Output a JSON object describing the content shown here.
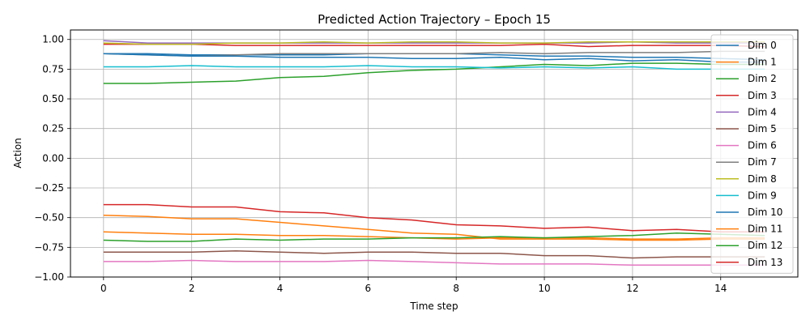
{
  "chart_data": {
    "type": "line",
    "title": "Predicted Action Trajectory – Epoch 15",
    "xlabel": "Time step",
    "ylabel": "Action",
    "xlim": [
      -0.75,
      15.75
    ],
    "ylim": [
      -1.0,
      1.08
    ],
    "xticks": [
      0,
      2,
      4,
      6,
      8,
      10,
      12,
      14
    ],
    "yticks": [
      -1.0,
      -0.75,
      -0.5,
      -0.25,
      0.0,
      0.25,
      0.5,
      0.75,
      1.0
    ],
    "ytick_labels": [
      "−1.00",
      "−0.75",
      "−0.50",
      "−0.25",
      "0.00",
      "0.25",
      "0.50",
      "0.75",
      "1.00"
    ],
    "grid": true,
    "legend_position": "right",
    "x": [
      0,
      1,
      2,
      3,
      4,
      5,
      6,
      7,
      8,
      9,
      10,
      11,
      12,
      13,
      14,
      15
    ],
    "series": [
      {
        "name": "Dim 0",
        "color": "#1f77b4",
        "values": [
          0.88,
          0.88,
          0.87,
          0.87,
          0.87,
          0.87,
          0.88,
          0.88,
          0.88,
          0.87,
          0.86,
          0.86,
          0.85,
          0.85,
          0.84,
          0.83
        ]
      },
      {
        "name": "Dim 1",
        "color": "#ff7f0e",
        "values": [
          -0.48,
          -0.49,
          -0.51,
          -0.51,
          -0.54,
          -0.57,
          -0.6,
          -0.63,
          -0.64,
          -0.68,
          -0.68,
          -0.68,
          -0.69,
          -0.69,
          -0.68,
          -0.68
        ]
      },
      {
        "name": "Dim 2",
        "color": "#2ca02c",
        "values": [
          0.63,
          0.63,
          0.64,
          0.65,
          0.68,
          0.69,
          0.72,
          0.74,
          0.75,
          0.77,
          0.79,
          0.78,
          0.8,
          0.8,
          0.79,
          0.79
        ]
      },
      {
        "name": "Dim 3",
        "color": "#d62728",
        "values": [
          0.96,
          0.96,
          0.96,
          0.95,
          0.95,
          0.95,
          0.95,
          0.95,
          0.95,
          0.95,
          0.96,
          0.94,
          0.95,
          0.95,
          0.95,
          0.94
        ]
      },
      {
        "name": "Dim 4",
        "color": "#9467bd",
        "values": [
          0.99,
          0.97,
          0.97,
          0.97,
          0.97,
          0.97,
          0.97,
          0.97,
          0.97,
          0.97,
          0.97,
          0.97,
          0.98,
          0.97,
          0.97,
          0.97
        ]
      },
      {
        "name": "Dim 5",
        "color": "#8c564b",
        "values": [
          -0.79,
          -0.79,
          -0.79,
          -0.78,
          -0.79,
          -0.8,
          -0.79,
          -0.79,
          -0.8,
          -0.8,
          -0.82,
          -0.82,
          -0.84,
          -0.83,
          -0.83,
          -0.83
        ]
      },
      {
        "name": "Dim 6",
        "color": "#e377c2",
        "values": [
          -0.87,
          -0.87,
          -0.86,
          -0.87,
          -0.87,
          -0.87,
          -0.86,
          -0.87,
          -0.88,
          -0.89,
          -0.89,
          -0.89,
          -0.9,
          -0.9,
          -0.9,
          -0.9
        ]
      },
      {
        "name": "Dim 7",
        "color": "#7f7f7f",
        "values": [
          0.88,
          0.87,
          0.86,
          0.87,
          0.88,
          0.88,
          0.88,
          0.88,
          0.88,
          0.89,
          0.88,
          0.89,
          0.89,
          0.89,
          0.9,
          0.9
        ]
      },
      {
        "name": "Dim 8",
        "color": "#bcbd22",
        "values": [
          0.97,
          0.96,
          0.96,
          0.97,
          0.97,
          0.98,
          0.97,
          0.98,
          0.98,
          0.97,
          0.97,
          0.98,
          0.98,
          0.98,
          0.98,
          0.98
        ]
      },
      {
        "name": "Dim 9",
        "color": "#17becf",
        "values": [
          0.77,
          0.77,
          0.78,
          0.77,
          0.77,
          0.77,
          0.78,
          0.77,
          0.77,
          0.76,
          0.77,
          0.76,
          0.77,
          0.75,
          0.75,
          0.75
        ]
      },
      {
        "name": "Dim 10",
        "color": "#1f77b4",
        "values": [
          0.88,
          0.87,
          0.86,
          0.86,
          0.85,
          0.85,
          0.85,
          0.84,
          0.84,
          0.85,
          0.83,
          0.84,
          0.82,
          0.83,
          0.81,
          0.81
        ]
      },
      {
        "name": "Dim 11",
        "color": "#ff7f0e",
        "values": [
          -0.62,
          -0.63,
          -0.64,
          -0.64,
          -0.65,
          -0.65,
          -0.66,
          -0.67,
          -0.68,
          -0.67,
          -0.67,
          -0.67,
          -0.68,
          -0.68,
          -0.67,
          -0.67
        ]
      },
      {
        "name": "Dim 12",
        "color": "#2ca02c",
        "values": [
          -0.69,
          -0.7,
          -0.7,
          -0.68,
          -0.69,
          -0.68,
          -0.68,
          -0.67,
          -0.67,
          -0.66,
          -0.67,
          -0.66,
          -0.65,
          -0.63,
          -0.64,
          -0.65
        ]
      },
      {
        "name": "Dim 13",
        "color": "#d62728",
        "values": [
          -0.39,
          -0.39,
          -0.41,
          -0.41,
          -0.45,
          -0.46,
          -0.5,
          -0.52,
          -0.56,
          -0.57,
          -0.59,
          -0.58,
          -0.61,
          -0.6,
          -0.62,
          -0.62
        ]
      }
    ]
  }
}
